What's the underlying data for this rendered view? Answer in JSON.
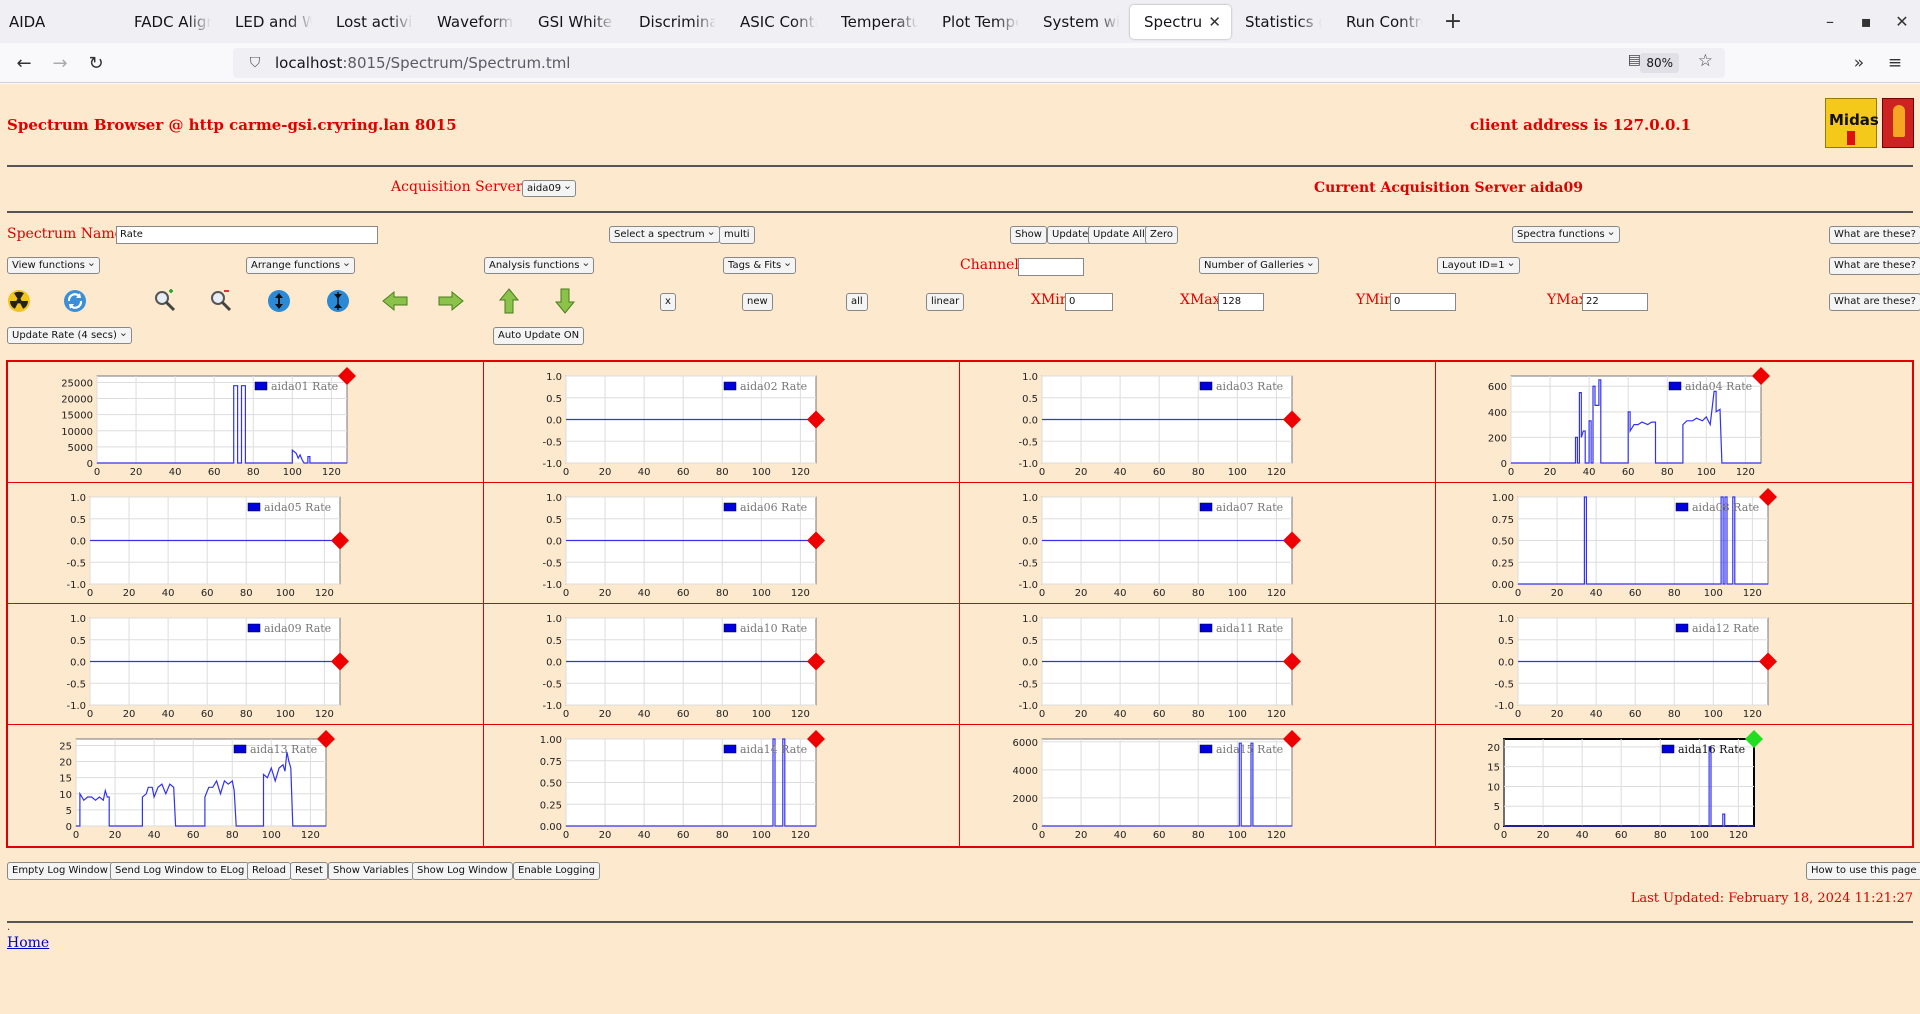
{
  "browser": {
    "app_name": "AIDA",
    "tabs": [
      {
        "label": "FADC Align & C",
        "active": false
      },
      {
        "label": "LED and Wavef",
        "active": false
      },
      {
        "label": "Lost activity mo",
        "active": false
      },
      {
        "label": "Waveform captu",
        "active": false
      },
      {
        "label": "GSI White Rabb",
        "active": false
      },
      {
        "label": "Discriminator co",
        "active": false
      },
      {
        "label": "ASIC Control @",
        "active": false
      },
      {
        "label": "Temperature an",
        "active": false
      },
      {
        "label": "Plot Temperatu",
        "active": false
      },
      {
        "label": "System wide Ch",
        "active": false
      },
      {
        "label": "Spectrum Bro",
        "active": true
      },
      {
        "label": "Statistics @ car",
        "active": false
      },
      {
        "label": "Run Control @",
        "active": false
      }
    ],
    "url_host": "localhost",
    "url_path": ":8015/Spectrum/Spectrum.tml",
    "zoom": "80%"
  },
  "header": {
    "title": "Spectrum Browser @ http carme-gsi.cryring.lan 8015",
    "client": "client address is 127.0.0.1",
    "logo_text": "Midas"
  },
  "acq": {
    "label": "Acquisition Servers",
    "selected": "aida09",
    "current": "Current Acquisition Server aida09"
  },
  "controls": {
    "spectrum_name_label": "Spectrum Name:",
    "spectrum_name_value": "Rate",
    "select_spectrum": "Select a spectrum",
    "multi": "multi",
    "show": "Show",
    "update": "Update",
    "update_all": "Update All",
    "zero": "Zero",
    "spectra_functions": "Spectra functions",
    "what": "What are these?",
    "view_functions": "View functions",
    "arrange_functions": "Arrange functions",
    "analysis_functions": "Analysis functions",
    "tags_fits": "Tags & Fits",
    "channel_label": "Channel:",
    "channel_value": "",
    "num_galleries": "Number of Galleries",
    "layout": "Layout ID=1",
    "x_btn": "x",
    "new_btn": "new",
    "all_btn": "all",
    "linear_btn": "linear",
    "xmin_label": "XMin",
    "xmin_value": "0",
    "xmax_label": "XMax",
    "xmax_value": "128",
    "ymin_label": "YMin",
    "ymin_value": "0",
    "ymax_label": "YMax",
    "ymax_value": "22",
    "update_rate": "Update Rate (4 secs)",
    "auto_update": "Auto Update ON"
  },
  "icons": [
    "radiation-icon",
    "refresh-icon",
    "zoom-in-icon",
    "zoom-out-icon",
    "expand-y-icon",
    "compress-y-icon",
    "arrow-left-icon",
    "arrow-right-icon",
    "arrow-up-icon",
    "arrow-down-icon"
  ],
  "colors": {
    "page_bg": "#fde9cd",
    "accent_red": "#e00000",
    "trace": "#3333ee",
    "marker_ok": "#22dd22",
    "marker_alarm": "#ee0000"
  },
  "footer": {
    "buttons": [
      "Empty Log Window",
      "Send Log Window to ELog",
      "Reload",
      "Reset",
      "Show Variables",
      "Show Log Window",
      "Enable Logging"
    ],
    "how_to": "How to use this page",
    "last_updated": "Last Updated: February 18, 2024 11:21:27",
    "home": "Home"
  },
  "chart_data": [
    {
      "type": "line",
      "legend": "aida01 Rate",
      "xlim": [
        0,
        128
      ],
      "yticks": [
        "25000",
        "20000",
        "15000",
        "10000",
        "5000",
        "0"
      ],
      "ylim": [
        0,
        27000
      ],
      "xticks": [
        0,
        20,
        40,
        60,
        80,
        100,
        120
      ],
      "marker": "red",
      "points": [
        [
          0,
          0
        ],
        [
          70,
          0
        ],
        [
          70,
          24000
        ],
        [
          72,
          24000
        ],
        [
          72,
          0
        ],
        [
          74,
          0
        ],
        [
          74,
          24000
        ],
        [
          76,
          24000
        ],
        [
          76,
          0
        ],
        [
          100,
          0
        ],
        [
          100,
          4000
        ],
        [
          102,
          3000
        ],
        [
          103,
          1500
        ],
        [
          104,
          2500
        ],
        [
          105,
          1000
        ],
        [
          106,
          0
        ],
        [
          108,
          0
        ],
        [
          108,
          2000
        ],
        [
          109,
          2000
        ],
        [
          109,
          0
        ],
        [
          128,
          0
        ]
      ]
    },
    {
      "type": "line",
      "legend": "aida02 Rate",
      "xlim": [
        0,
        128
      ],
      "yticks": [
        "1.0",
        "0.5",
        "0.0",
        "-0.5",
        "-1.0"
      ],
      "ylim": [
        -1,
        1
      ],
      "xticks": [
        0,
        20,
        40,
        60,
        80,
        100,
        120
      ],
      "marker": "red",
      "points": [
        [
          0,
          0
        ],
        [
          128,
          0
        ]
      ]
    },
    {
      "type": "line",
      "legend": "aida03 Rate",
      "xlim": [
        0,
        128
      ],
      "yticks": [
        "1.0",
        "0.5",
        "0.0",
        "-0.5",
        "-1.0"
      ],
      "ylim": [
        -1,
        1
      ],
      "xticks": [
        0,
        20,
        40,
        60,
        80,
        100,
        120
      ],
      "marker": "red",
      "points": [
        [
          0,
          0
        ],
        [
          128,
          0
        ]
      ]
    },
    {
      "type": "line",
      "legend": "aida04 Rate",
      "xlim": [
        0,
        128
      ],
      "yticks": [
        "600",
        "400",
        "200",
        "0"
      ],
      "ylim": [
        0,
        680
      ],
      "xticks": [
        0,
        20,
        40,
        60,
        80,
        100,
        120
      ],
      "marker": "red",
      "points": [
        [
          0,
          0
        ],
        [
          33,
          0
        ],
        [
          33,
          200
        ],
        [
          34,
          200
        ],
        [
          34,
          0
        ],
        [
          35,
          0
        ],
        [
          35,
          550
        ],
        [
          36,
          550
        ],
        [
          36,
          200
        ],
        [
          37,
          250
        ],
        [
          38,
          250
        ],
        [
          38,
          0
        ],
        [
          40,
          0
        ],
        [
          40,
          330
        ],
        [
          41,
          330
        ],
        [
          41,
          0
        ],
        [
          42,
          0
        ],
        [
          42,
          600
        ],
        [
          43,
          600
        ],
        [
          43,
          450
        ],
        [
          45,
          450
        ],
        [
          45,
          650
        ],
        [
          46,
          650
        ],
        [
          46,
          0
        ],
        [
          60,
          0
        ],
        [
          60,
          400
        ],
        [
          61,
          400
        ],
        [
          61,
          250
        ],
        [
          63,
          300
        ],
        [
          65,
          300
        ],
        [
          67,
          320
        ],
        [
          70,
          300
        ],
        [
          72,
          320
        ],
        [
          74,
          320
        ],
        [
          74,
          0
        ],
        [
          88,
          0
        ],
        [
          88,
          300
        ],
        [
          90,
          330
        ],
        [
          93,
          330
        ],
        [
          95,
          350
        ],
        [
          98,
          330
        ],
        [
          100,
          360
        ],
        [
          102,
          300
        ],
        [
          104,
          560
        ],
        [
          105,
          560
        ],
        [
          105,
          400
        ],
        [
          107,
          420
        ],
        [
          108,
          0
        ],
        [
          128,
          0
        ]
      ]
    },
    {
      "type": "line",
      "legend": "aida05 Rate",
      "xlim": [
        0,
        128
      ],
      "yticks": [
        "1.0",
        "0.5",
        "0.0",
        "-0.5",
        "-1.0"
      ],
      "ylim": [
        -1,
        1
      ],
      "xticks": [
        0,
        20,
        40,
        60,
        80,
        100,
        120
      ],
      "marker": "red",
      "points": [
        [
          0,
          0
        ],
        [
          128,
          0
        ]
      ]
    },
    {
      "type": "line",
      "legend": "aida06 Rate",
      "xlim": [
        0,
        128
      ],
      "yticks": [
        "1.0",
        "0.5",
        "0.0",
        "-0.5",
        "-1.0"
      ],
      "ylim": [
        -1,
        1
      ],
      "xticks": [
        0,
        20,
        40,
        60,
        80,
        100,
        120
      ],
      "marker": "red",
      "points": [
        [
          0,
          0
        ],
        [
          128,
          0
        ]
      ]
    },
    {
      "type": "line",
      "legend": "aida07 Rate",
      "xlim": [
        0,
        128
      ],
      "yticks": [
        "1.0",
        "0.5",
        "0.0",
        "-0.5",
        "-1.0"
      ],
      "ylim": [
        -1,
        1
      ],
      "xticks": [
        0,
        20,
        40,
        60,
        80,
        100,
        120
      ],
      "marker": "red",
      "points": [
        [
          0,
          0
        ],
        [
          128,
          0
        ]
      ]
    },
    {
      "type": "line",
      "legend": "aida08 Rate",
      "xlim": [
        0,
        128
      ],
      "yticks": [
        "1.00",
        "0.75",
        "0.50",
        "0.25",
        "0.00"
      ],
      "ylim": [
        0,
        1
      ],
      "xticks": [
        0,
        20,
        40,
        60,
        80,
        100,
        120
      ],
      "marker": "red",
      "points": [
        [
          0,
          0
        ],
        [
          34,
          0
        ],
        [
          34,
          1
        ],
        [
          35,
          1
        ],
        [
          35,
          0
        ],
        [
          104,
          0
        ],
        [
          104,
          1
        ],
        [
          105,
          1
        ],
        [
          105,
          0
        ],
        [
          106,
          0
        ],
        [
          106,
          1
        ],
        [
          107,
          1
        ],
        [
          107,
          0
        ],
        [
          110,
          0
        ],
        [
          110,
          1
        ],
        [
          111,
          1
        ],
        [
          111,
          0
        ],
        [
          128,
          0
        ]
      ]
    },
    {
      "type": "line",
      "legend": "aida09 Rate",
      "xlim": [
        0,
        128
      ],
      "yticks": [
        "1.0",
        "0.5",
        "0.0",
        "-0.5",
        "-1.0"
      ],
      "ylim": [
        -1,
        1
      ],
      "xticks": [
        0,
        20,
        40,
        60,
        80,
        100,
        120
      ],
      "marker": "red",
      "points": [
        [
          0,
          0
        ],
        [
          128,
          0
        ]
      ]
    },
    {
      "type": "line",
      "legend": "aida10 Rate",
      "xlim": [
        0,
        128
      ],
      "yticks": [
        "1.0",
        "0.5",
        "0.0",
        "-0.5",
        "-1.0"
      ],
      "ylim": [
        -1,
        1
      ],
      "xticks": [
        0,
        20,
        40,
        60,
        80,
        100,
        120
      ],
      "marker": "red",
      "points": [
        [
          0,
          0
        ],
        [
          128,
          0
        ]
      ]
    },
    {
      "type": "line",
      "legend": "aida11 Rate",
      "xlim": [
        0,
        128
      ],
      "yticks": [
        "1.0",
        "0.5",
        "0.0",
        "-0.5",
        "-1.0"
      ],
      "ylim": [
        -1,
        1
      ],
      "xticks": [
        0,
        20,
        40,
        60,
        80,
        100,
        120
      ],
      "marker": "red",
      "points": [
        [
          0,
          0
        ],
        [
          128,
          0
        ]
      ]
    },
    {
      "type": "line",
      "legend": "aida12 Rate",
      "xlim": [
        0,
        128
      ],
      "yticks": [
        "1.0",
        "0.5",
        "0.0",
        "-0.5",
        "-1.0"
      ],
      "ylim": [
        -1,
        1
      ],
      "xticks": [
        0,
        20,
        40,
        60,
        80,
        100,
        120
      ],
      "marker": "red",
      "points": [
        [
          0,
          0
        ],
        [
          128,
          0
        ]
      ]
    },
    {
      "type": "line",
      "legend": "aida13 Rate",
      "xlim": [
        0,
        128
      ],
      "yticks": [
        "25",
        "20",
        "15",
        "10",
        "5",
        "0"
      ],
      "ylim": [
        0,
        27
      ],
      "xticks": [
        0,
        20,
        40,
        60,
        80,
        100,
        120
      ],
      "marker": "red",
      "points": [
        [
          0,
          0
        ],
        [
          2,
          0
        ],
        [
          2,
          10
        ],
        [
          4,
          8
        ],
        [
          6,
          9
        ],
        [
          8,
          9
        ],
        [
          10,
          8
        ],
        [
          12,
          9
        ],
        [
          14,
          8
        ],
        [
          15,
          11
        ],
        [
          16,
          9
        ],
        [
          17,
          9
        ],
        [
          17,
          0
        ],
        [
          34,
          0
        ],
        [
          34,
          9
        ],
        [
          36,
          10
        ],
        [
          37,
          12
        ],
        [
          39,
          12
        ],
        [
          40,
          9
        ],
        [
          42,
          12
        ],
        [
          44,
          13
        ],
        [
          46,
          10
        ],
        [
          48,
          13
        ],
        [
          50,
          12
        ],
        [
          51,
          0
        ],
        [
          66,
          0
        ],
        [
          66,
          9
        ],
        [
          68,
          12
        ],
        [
          70,
          12
        ],
        [
          72,
          14
        ],
        [
          74,
          10
        ],
        [
          76,
          14
        ],
        [
          78,
          13
        ],
        [
          80,
          14
        ],
        [
          81,
          11
        ],
        [
          82,
          0
        ],
        [
          96,
          0
        ],
        [
          96,
          16
        ],
        [
          98,
          15
        ],
        [
          100,
          18
        ],
        [
          102,
          14
        ],
        [
          104,
          18
        ],
        [
          106,
          19
        ],
        [
          107,
          17
        ],
        [
          108,
          23
        ],
        [
          109,
          20
        ],
        [
          110,
          18
        ],
        [
          111,
          0
        ],
        [
          128,
          0
        ]
      ]
    },
    {
      "type": "line",
      "legend": "aida14 Rate",
      "xlim": [
        0,
        128
      ],
      "yticks": [
        "1.00",
        "0.75",
        "0.50",
        "0.25",
        "0.00"
      ],
      "ylim": [
        0,
        1
      ],
      "xticks": [
        0,
        20,
        40,
        60,
        80,
        100,
        120
      ],
      "marker": "red",
      "points": [
        [
          0,
          0
        ],
        [
          106,
          0
        ],
        [
          106,
          1
        ],
        [
          107,
          1
        ],
        [
          107,
          0
        ],
        [
          111,
          0
        ],
        [
          111,
          1
        ],
        [
          112,
          1
        ],
        [
          112,
          0
        ],
        [
          128,
          0
        ]
      ]
    },
    {
      "type": "line",
      "legend": "aida15 Rate",
      "xlim": [
        0,
        128
      ],
      "yticks": [
        "6000",
        "4000",
        "2000",
        "0"
      ],
      "ylim": [
        0,
        6200
      ],
      "xticks": [
        0,
        20,
        40,
        60,
        80,
        100,
        120
      ],
      "marker": "red",
      "points": [
        [
          0,
          0
        ],
        [
          101,
          0
        ],
        [
          101,
          5900
        ],
        [
          102,
          5900
        ],
        [
          102,
          0
        ],
        [
          107,
          0
        ],
        [
          107,
          5900
        ],
        [
          108,
          5900
        ],
        [
          108,
          0
        ],
        [
          128,
          0
        ]
      ]
    },
    {
      "type": "line",
      "legend": "aida16 Rate",
      "xlim": [
        0,
        128
      ],
      "yticks": [
        "20",
        "15",
        "10",
        "5",
        "0"
      ],
      "ylim": [
        0,
        22
      ],
      "xticks": [
        0,
        20,
        40,
        60,
        80,
        100,
        120
      ],
      "marker": "green",
      "highlight": true,
      "points": [
        [
          0,
          0
        ],
        [
          105,
          0
        ],
        [
          105,
          20
        ],
        [
          106,
          20
        ],
        [
          106,
          0
        ],
        [
          112,
          0
        ],
        [
          112,
          3
        ],
        [
          113,
          3
        ],
        [
          113,
          0
        ],
        [
          128,
          0
        ]
      ]
    }
  ]
}
